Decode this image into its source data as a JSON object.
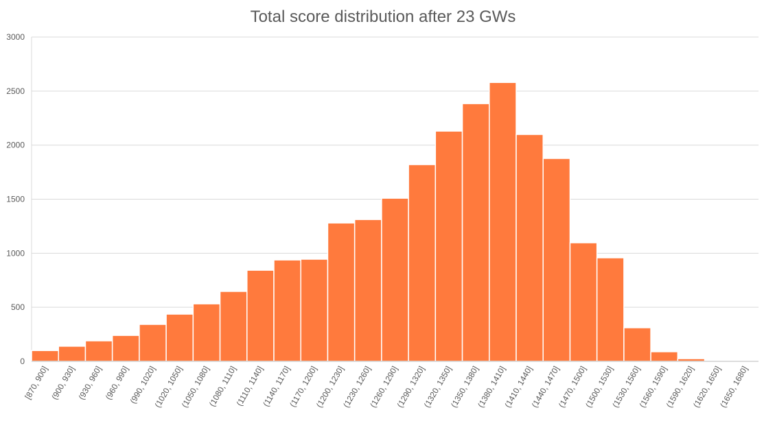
{
  "chart_data": {
    "type": "bar",
    "title": "Total score distribution after 23 GWs",
    "xlabel": "",
    "ylabel": "",
    "ylim": [
      0,
      3000
    ],
    "yticks": [
      0,
      500,
      1000,
      1500,
      2000,
      2500,
      3000
    ],
    "grid": true,
    "color": "#ff7a3d",
    "categories": [
      "[870, 900]",
      "(900, 930]",
      "(930, 960]",
      "(960, 990]",
      "(990, 1020]",
      "(1020, 1050]",
      "(1050, 1080]",
      "(1080, 1110]",
      "(1110, 1140]",
      "(1140, 1170]",
      "(1170, 1200]",
      "(1200, 1230]",
      "(1230, 1260]",
      "(1260, 1290]",
      "(1290, 1320]",
      "(1320, 1350]",
      "(1350, 1380]",
      "(1380, 1410]",
      "(1410, 1440]",
      "(1440, 1470]",
      "(1470, 1500]",
      "(1500, 1530]",
      "(1530, 1560]",
      "(1560, 1590]",
      "(1590, 1620]",
      "(1620, 1650]",
      "(1650, 1680]"
    ],
    "values": [
      100,
      140,
      190,
      240,
      342,
      437,
      532,
      647,
      843,
      938,
      945,
      1280,
      1312,
      1509,
      1820,
      2130,
      2384,
      2580,
      2099,
      1877,
      1097,
      958,
      311,
      89,
      25,
      3,
      1
    ]
  }
}
